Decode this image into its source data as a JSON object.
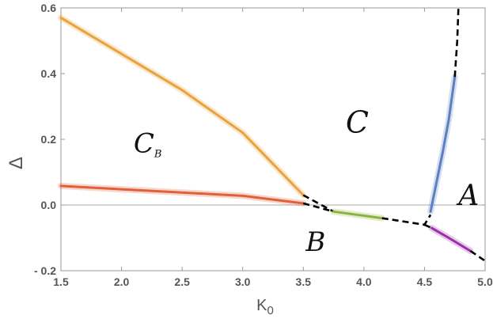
{
  "chart_data": {
    "type": "line",
    "xlabel": "K",
    "xlabel_sub": "0",
    "ylabel": "Δ",
    "xlim": [
      1.5,
      5.0
    ],
    "ylim": [
      -0.2,
      0.6
    ],
    "x_ticks": [
      1.5,
      2.0,
      2.5,
      3.0,
      3.5,
      4.0,
      4.5,
      5.0
    ],
    "x_tick_labels": [
      "1.5",
      "2.0",
      "2.5",
      "3.0",
      "3.5",
      "4.0",
      "4.5",
      "5.0"
    ],
    "y_ticks": [
      -0.2,
      0.0,
      0.2,
      0.4,
      0.6
    ],
    "y_tick_labels": [
      "- 0.2",
      "0.0",
      "0.2",
      "0.4",
      "0.6"
    ],
    "grid": false,
    "zero_line": true,
    "series": [
      {
        "color": "#E8A33C",
        "style": "solid",
        "x": [
          1.5,
          2.0,
          2.5,
          3.0,
          3.5
        ],
        "y": [
          0.57,
          0.46,
          0.35,
          0.22,
          0.03
        ]
      },
      {
        "color": "#E0603A",
        "style": "solid",
        "x": [
          1.5,
          2.0,
          2.5,
          3.0,
          3.5
        ],
        "y": [
          0.058,
          0.048,
          0.038,
          0.028,
          0.005
        ]
      },
      {
        "color": "#000000",
        "style": "dashed",
        "x": [
          3.5,
          3.75
        ],
        "y": [
          0.03,
          -0.02
        ]
      },
      {
        "color": "#000000",
        "style": "dashed",
        "x": [
          3.5,
          3.75
        ],
        "y": [
          0.005,
          -0.02
        ]
      },
      {
        "color": "#8DB33B",
        "style": "solid",
        "x": [
          3.75,
          4.15
        ],
        "y": [
          -0.02,
          -0.04
        ]
      },
      {
        "color": "#000000",
        "style": "dashed",
        "x": [
          4.15,
          4.5,
          4.55
        ],
        "y": [
          -0.04,
          -0.06,
          -0.03
        ]
      },
      {
        "color": "#5B7FC0",
        "style": "solid",
        "x": [
          4.55,
          4.6,
          4.65,
          4.7,
          4.75
        ],
        "y": [
          -0.02,
          0.07,
          0.16,
          0.26,
          0.39
        ]
      },
      {
        "color": "#000000",
        "style": "dashed",
        "x": [
          4.75,
          4.77,
          4.78
        ],
        "y": [
          0.39,
          0.5,
          0.6
        ]
      },
      {
        "color": "#000000",
        "style": "dashed",
        "x": [
          4.5,
          4.56
        ],
        "y": [
          -0.06,
          -0.07
        ]
      },
      {
        "color": "#9B2FA8",
        "style": "solid",
        "x": [
          4.56,
          4.7,
          4.88
        ],
        "y": [
          -0.07,
          -0.1,
          -0.14
        ]
      },
      {
        "color": "#000000",
        "style": "dashed",
        "x": [
          4.88,
          5.0
        ],
        "y": [
          -0.14,
          -0.17
        ]
      }
    ],
    "annotations": [
      {
        "text": "C",
        "sub": "B",
        "x": 2.1,
        "y": 0.16,
        "size": 34
      },
      {
        "text": "C",
        "sub": "",
        "x": 3.85,
        "y": 0.22,
        "size": 38
      },
      {
        "text": "A",
        "sub": "",
        "x": 4.78,
        "y": 0.0,
        "size": 36
      },
      {
        "text": "B",
        "sub": "",
        "x": 3.52,
        "y": -0.14,
        "size": 34
      }
    ]
  }
}
